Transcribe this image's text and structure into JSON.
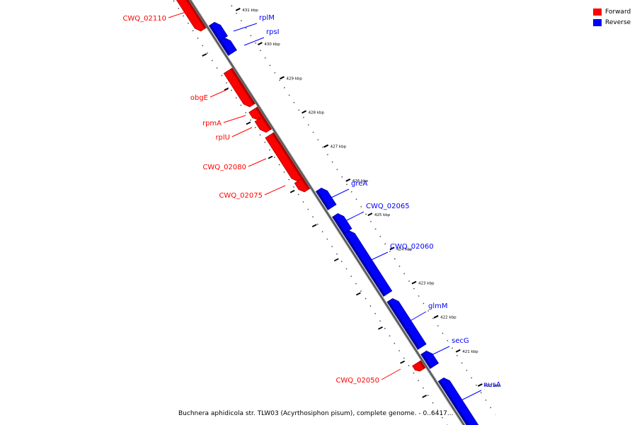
{
  "legend": {
    "forward_label": "Forward",
    "reverse_label": "Reverse",
    "forward_color": "#ff0000",
    "reverse_color": "#0000ff"
  },
  "caption": "Buchnera aphidicola str. TLW03 (Acyrthosiphon pisum), complete genome. - 0..6417...",
  "ruler": {
    "unit": "kbp",
    "labels": [
      "431 kbp",
      "430 kbp",
      "429 kbp",
      "428 kbp",
      "427 kbp",
      "426 kbp",
      "425 kbp",
      "424 kbp",
      "423 kbp",
      "422 kbp",
      "421 kbp",
      "420 kbp"
    ]
  },
  "genes": [
    {
      "name": "CWQ_02110",
      "strand": "forward"
    },
    {
      "name": "rplM",
      "strand": "reverse"
    },
    {
      "name": "rpsI",
      "strand": "reverse"
    },
    {
      "name": "obgE",
      "strand": "forward"
    },
    {
      "name": "rpmA",
      "strand": "forward"
    },
    {
      "name": "rplU",
      "strand": "forward"
    },
    {
      "name": "CWQ_02080",
      "strand": "forward"
    },
    {
      "name": "CWQ_02075",
      "strand": "forward"
    },
    {
      "name": "greA",
      "strand": "reverse"
    },
    {
      "name": "CWQ_02065",
      "strand": "reverse"
    },
    {
      "name": "CWQ_02060",
      "strand": "reverse"
    },
    {
      "name": "glmM",
      "strand": "reverse"
    },
    {
      "name": "secG",
      "strand": "reverse"
    },
    {
      "name": "CWQ_02050",
      "strand": "forward"
    },
    {
      "name": "nusA",
      "strand": "reverse"
    }
  ]
}
